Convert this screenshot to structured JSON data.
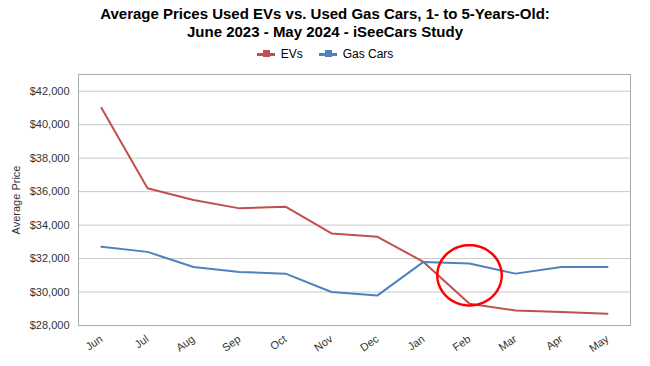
{
  "chart_data": {
    "type": "line",
    "title": "Average Prices Used EVs vs. Used Gas Cars, 1- to 5-Years-Old:\nJune 2023 - May 2024 - iSeeCars Study",
    "ylabel": "Average Price",
    "categories": [
      "Jun",
      "Jul",
      "Aug",
      "Sep",
      "Oct",
      "Nov",
      "Dec",
      "Jan",
      "Feb",
      "Mar",
      "Apr",
      "May"
    ],
    "series": [
      {
        "name": "EVs",
        "color": "#c0504d",
        "values": [
          41000,
          36200,
          35500,
          35000,
          35100,
          33500,
          33300,
          31800,
          29300,
          28900,
          28800,
          28700
        ]
      },
      {
        "name": "Gas Cars",
        "color": "#4f81bd",
        "values": [
          32700,
          32400,
          31500,
          31200,
          31100,
          30000,
          29800,
          31800,
          31700,
          31100,
          31500,
          31500
        ]
      }
    ],
    "ylim": [
      28000,
      43000
    ],
    "yticks": [
      {
        "value": 28000,
        "label": "$28,000"
      },
      {
        "value": 30000,
        "label": "$30,000"
      },
      {
        "value": 32000,
        "label": "$32,000"
      },
      {
        "value": 34000,
        "label": "$34,000"
      },
      {
        "value": 36000,
        "label": "$36,000"
      },
      {
        "value": 38000,
        "label": "$38,000"
      },
      {
        "value": 40000,
        "label": "$40,000"
      },
      {
        "value": 42000,
        "label": "$42,000"
      }
    ],
    "grid": true,
    "legend": "top",
    "annotations": [
      {
        "shape": "ellipse",
        "x": "Feb",
        "y": 31000,
        "width": 1.4,
        "height": 3600,
        "color": "red"
      }
    ]
  }
}
